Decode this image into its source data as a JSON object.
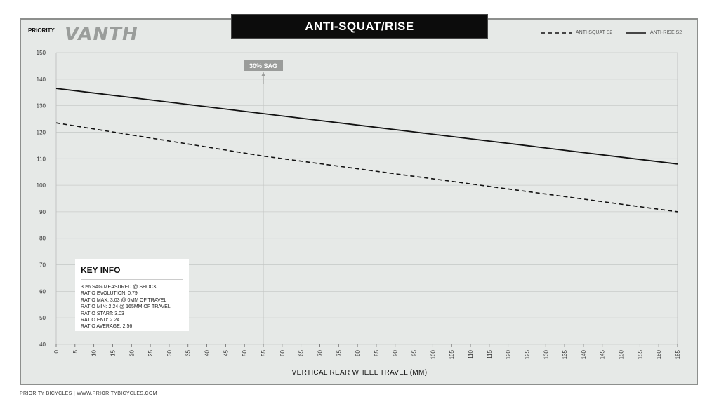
{
  "header": {
    "brand": "PRIORITY",
    "logo": "VANTH",
    "title": "ANTI-SQUAT/RISE"
  },
  "footer": {
    "text": "PRIORITY BICYCLES | WWW.PRIORITYBICYCLES.COM"
  },
  "key_info": {
    "heading": "KEY INFO",
    "lines": [
      "30% SAG MEASURED @ SHOCK",
      "RATIO EVOLUTION: 0.79",
      "RATIO MAX: 3.03 @ 0MM OF TRAVEL",
      "RATIO MIN: 2.24 @ 165MM OF TRAVEL",
      "RATIO START: 3.03",
      "RATIO END: 2.24",
      "RATIO AVERAGE: 2.56"
    ]
  },
  "colors": {
    "panel": "#e6e9e7",
    "title_bg": "#0c0c0c",
    "line": "#111111",
    "marker": "#9a9c9a"
  },
  "chart_data": {
    "type": "line",
    "title": "ANTI-SQUAT/RISE",
    "xlabel": "VERTICAL REAR WHEEL TRAVEL (MM)",
    "ylabel": "",
    "xlim": [
      0,
      165
    ],
    "ylim": [
      40,
      150
    ],
    "x_ticks": [
      0,
      5,
      10,
      15,
      20,
      25,
      30,
      35,
      40,
      45,
      50,
      55,
      60,
      65,
      70,
      75,
      80,
      85,
      90,
      95,
      100,
      105,
      110,
      115,
      120,
      125,
      130,
      135,
      140,
      145,
      150,
      155,
      160,
      165
    ],
    "y_ticks": [
      40,
      50,
      60,
      70,
      80,
      90,
      100,
      110,
      120,
      130,
      140,
      150
    ],
    "grid": true,
    "legend_position": "top-right",
    "series": [
      {
        "name": "ANTI-SQUAT S2",
        "style": "dashed",
        "x": [
          0,
          55,
          165
        ],
        "y": [
          123.5,
          111,
          90
        ]
      },
      {
        "name": "ANTI-RISE S2",
        "style": "solid",
        "x": [
          0,
          55,
          165
        ],
        "y": [
          136.5,
          127,
          108
        ]
      }
    ],
    "annotations": [
      {
        "label": "30% SAG",
        "x": 55
      }
    ]
  }
}
